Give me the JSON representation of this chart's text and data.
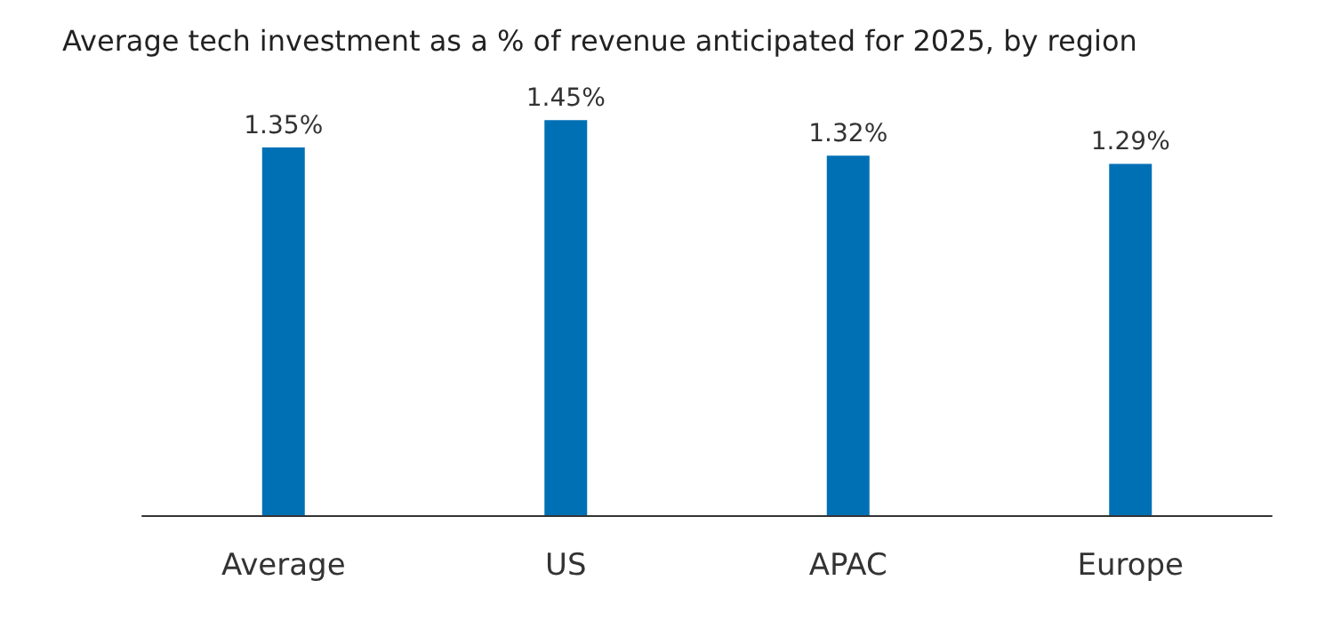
{
  "chart_data": {
    "type": "bar",
    "title": "Average tech investment as a % of revenue anticipated for 2025, by region",
    "categories": [
      "Average",
      "US",
      "APAC",
      "Europe"
    ],
    "values": [
      1.35,
      1.45,
      1.32,
      1.29
    ],
    "value_labels": [
      "1.35%",
      "1.45%",
      "1.32%",
      "1.29%"
    ],
    "color": "#0070b5"
  }
}
